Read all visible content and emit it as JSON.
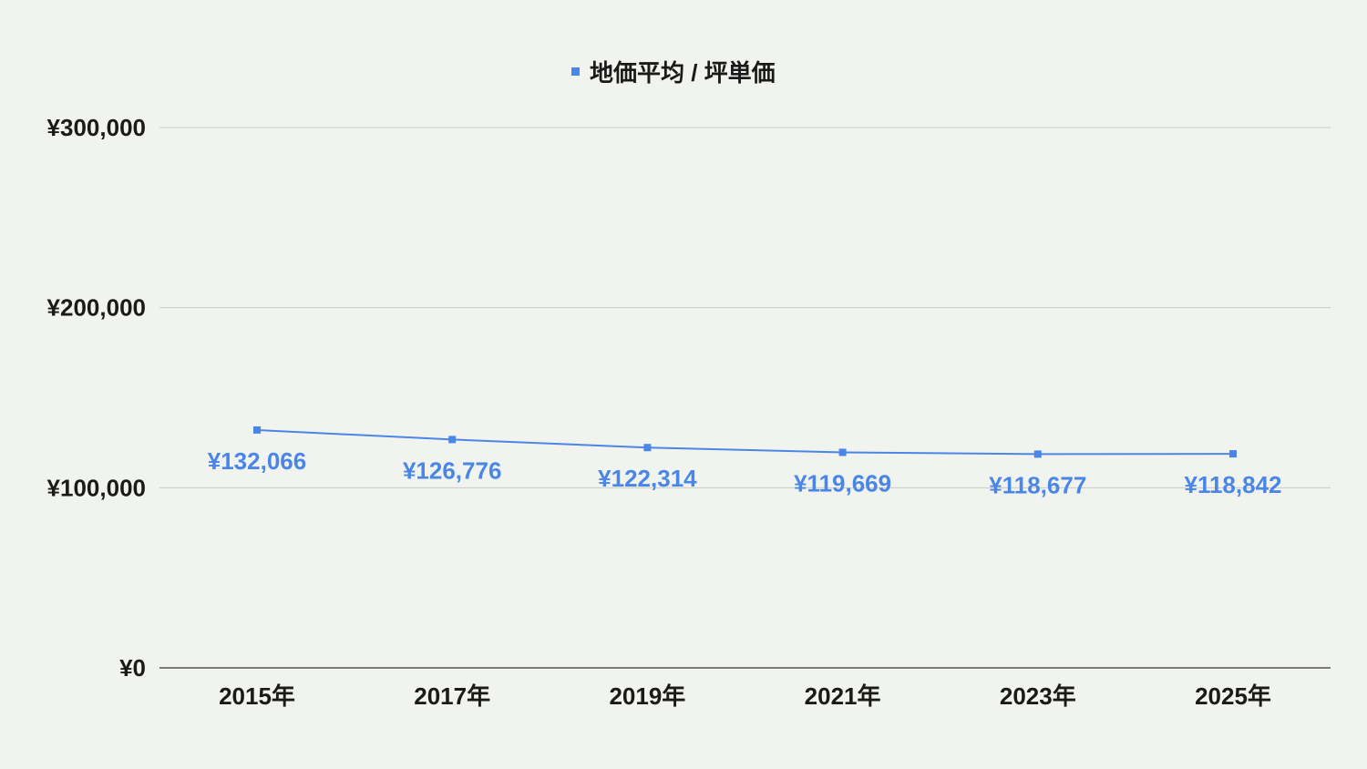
{
  "chart_data": {
    "type": "line",
    "title": "",
    "xlabel": "",
    "ylabel": "",
    "categories": [
      "2015年",
      "2017年",
      "2019年",
      "2021年",
      "2023年",
      "2025年"
    ],
    "series": [
      {
        "name": "地価平均 / 坪単価",
        "values": [
          132066,
          126776,
          122314,
          119669,
          118677,
          118842
        ],
        "data_labels": [
          "¥132,066",
          "¥126,776",
          "¥122,314",
          "¥119,669",
          "¥118,677",
          "¥118,842"
        ]
      }
    ],
    "ylim": [
      0,
      300000
    ],
    "yticks": [
      0,
      100000,
      200000,
      300000
    ],
    "ytick_labels": [
      "¥0",
      "¥100,000",
      "¥200,000",
      "¥300,000"
    ],
    "grid": true,
    "legend_position": "top-center",
    "colors": {
      "series": "#4a86e8",
      "gridline": "#c8cbc6",
      "baseline": "#333333",
      "background": "#f1f3ee",
      "text": "#1a1a1a"
    }
  }
}
